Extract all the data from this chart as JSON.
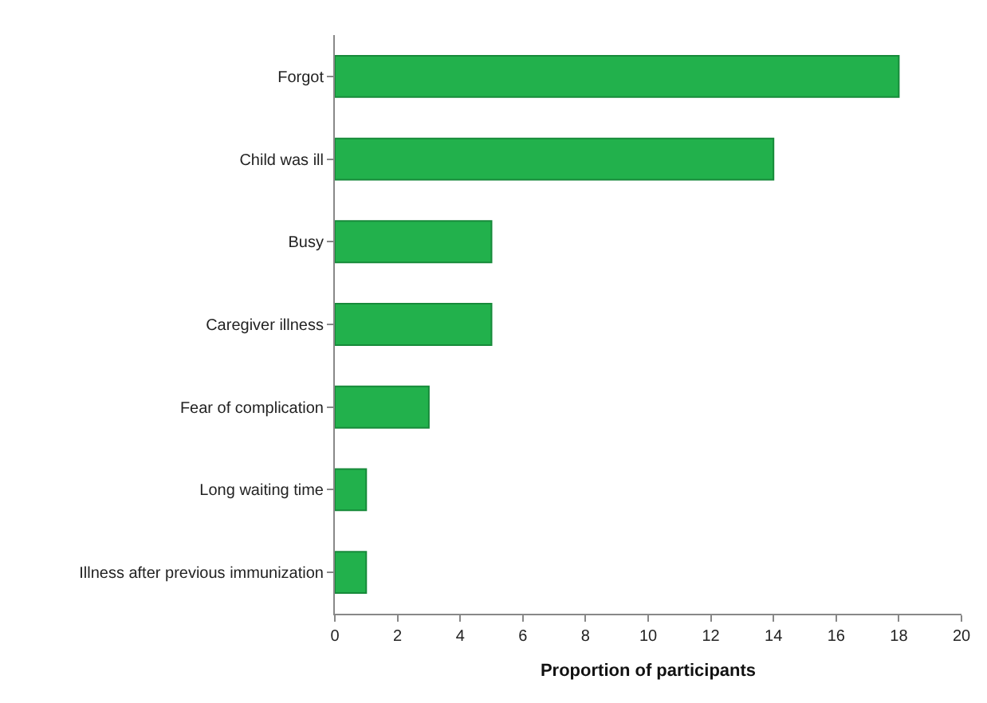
{
  "chart_data": {
    "type": "bar",
    "orientation": "horizontal",
    "xlabel": "Proportion of participants",
    "categories": [
      "Forgot",
      "Child was ill",
      "Busy",
      "Caregiver illness",
      "Fear of complication",
      "Long waiting time",
      "Illness after previous immunization"
    ],
    "values": [
      18,
      14,
      5,
      5,
      3,
      1,
      1
    ],
    "color": "#22b14c",
    "xlim": [
      0,
      20
    ],
    "xticks": [
      0,
      2,
      4,
      6,
      8,
      10,
      12,
      14,
      16,
      18,
      20
    ],
    "grid": false
  }
}
